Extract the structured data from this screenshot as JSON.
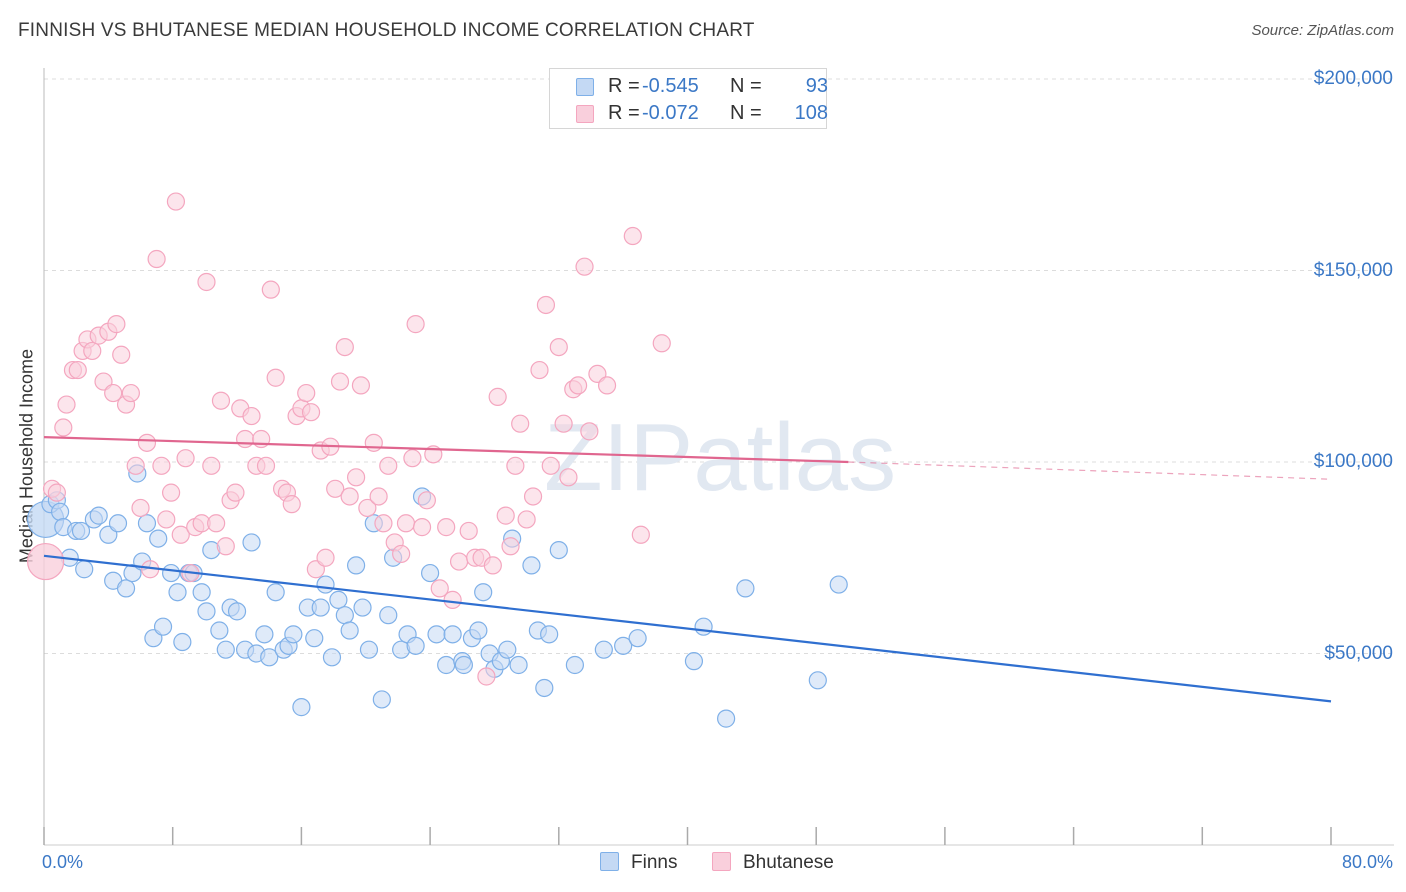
{
  "title": "FINNISH VS BHUTANESE MEDIAN HOUSEHOLD INCOME CORRELATION CHART",
  "source": "Source: ZipAtlas.com",
  "watermark": "ZIPatlas",
  "chart_data": {
    "type": "scatter",
    "title": "FINNISH VS BHUTANESE MEDIAN HOUSEHOLD INCOME CORRELATION CHART",
    "xlabel": "",
    "ylabel": "Median Household Income",
    "xlim": [
      0,
      80
    ],
    "ylim": [
      0,
      210000
    ],
    "x_tick_labels": [
      "0.0%",
      "80.0%"
    ],
    "y_ticks": [
      {
        "value": 50000,
        "label": "$50,000"
      },
      {
        "value": 100000,
        "label": "$100,000"
      },
      {
        "value": 150000,
        "label": "$150,000"
      },
      {
        "value": 200000,
        "label": "$200,000"
      }
    ],
    "grid": true,
    "legend": [
      {
        "r_label": "R =",
        "r_value": "-0.545",
        "n_label": "N =",
        "n_value": "93"
      },
      {
        "r_label": "R =",
        "r_value": "-0.072",
        "n_label": "N =",
        "n_value": "108"
      }
    ],
    "series": [
      {
        "name": "Finns",
        "color": "#7fb0e8",
        "fill": "#c4d9f4",
        "trend_color": "#2f6fd0",
        "trend": {
          "x0": 0,
          "y0": 75500,
          "x1": 80,
          "y1": 37500
        },
        "points": [
          [
            0.1,
            85000
          ],
          [
            0.4,
            89000
          ],
          [
            0.8,
            90000
          ],
          [
            1.0,
            87000
          ],
          [
            1.2,
            83000
          ],
          [
            1.6,
            75000
          ],
          [
            2.0,
            82000
          ],
          [
            2.3,
            82000
          ],
          [
            2.5,
            72000
          ],
          [
            3.1,
            85000
          ],
          [
            3.4,
            86000
          ],
          [
            4.0,
            81000
          ],
          [
            4.3,
            69000
          ],
          [
            4.6,
            84000
          ],
          [
            5.1,
            67000
          ],
          [
            5.5,
            71000
          ],
          [
            5.8,
            97000
          ],
          [
            6.1,
            74000
          ],
          [
            6.4,
            84000
          ],
          [
            6.8,
            54000
          ],
          [
            7.1,
            80000
          ],
          [
            7.4,
            57000
          ],
          [
            7.9,
            71000
          ],
          [
            8.3,
            66000
          ],
          [
            8.6,
            53000
          ],
          [
            9.0,
            71000
          ],
          [
            9.3,
            71000
          ],
          [
            9.8,
            66000
          ],
          [
            10.1,
            61000
          ],
          [
            10.4,
            77000
          ],
          [
            10.9,
            56000
          ],
          [
            11.3,
            51000
          ],
          [
            11.6,
            62000
          ],
          [
            12.0,
            61000
          ],
          [
            12.5,
            51000
          ],
          [
            12.9,
            79000
          ],
          [
            13.2,
            50000
          ],
          [
            13.7,
            55000
          ],
          [
            14.0,
            49000
          ],
          [
            14.4,
            66000
          ],
          [
            14.9,
            51000
          ],
          [
            15.2,
            52000
          ],
          [
            15.5,
            55000
          ],
          [
            16.0,
            36000
          ],
          [
            16.4,
            62000
          ],
          [
            16.8,
            54000
          ],
          [
            17.2,
            62000
          ],
          [
            17.5,
            68000
          ],
          [
            17.9,
            49000
          ],
          [
            18.3,
            64000
          ],
          [
            18.7,
            60000
          ],
          [
            19.0,
            56000
          ],
          [
            19.4,
            73000
          ],
          [
            19.8,
            62000
          ],
          [
            20.2,
            51000
          ],
          [
            20.5,
            84000
          ],
          [
            21.0,
            38000
          ],
          [
            21.4,
            60000
          ],
          [
            21.7,
            75000
          ],
          [
            22.2,
            51000
          ],
          [
            22.6,
            55000
          ],
          [
            23.1,
            52000
          ],
          [
            23.5,
            91000
          ],
          [
            24.0,
            71000
          ],
          [
            24.4,
            55000
          ],
          [
            25.0,
            47000
          ],
          [
            25.4,
            55000
          ],
          [
            26.0,
            48000
          ],
          [
            26.1,
            47000
          ],
          [
            26.6,
            54000
          ],
          [
            27.0,
            56000
          ],
          [
            27.3,
            66000
          ],
          [
            27.7,
            50000
          ],
          [
            28.0,
            46000
          ],
          [
            28.4,
            48000
          ],
          [
            28.8,
            51000
          ],
          [
            29.1,
            80000
          ],
          [
            29.5,
            47000
          ],
          [
            30.3,
            73000
          ],
          [
            30.7,
            56000
          ],
          [
            31.1,
            41000
          ],
          [
            31.4,
            55000
          ],
          [
            32.0,
            77000
          ],
          [
            33.0,
            47000
          ],
          [
            34.8,
            51000
          ],
          [
            36.0,
            52000
          ],
          [
            36.9,
            54000
          ],
          [
            40.4,
            48000
          ],
          [
            41.0,
            57000
          ],
          [
            42.4,
            33000
          ],
          [
            43.6,
            67000
          ],
          [
            48.1,
            43000
          ],
          [
            49.4,
            68000
          ]
        ],
        "big_points": [
          [
            0.1,
            85000
          ]
        ]
      },
      {
        "name": "Bhutanese",
        "color": "#f4a6bf",
        "fill": "#f9cfdc",
        "trend_color": "#e0668f",
        "trend": {
          "x0": 0,
          "y0": 106500,
          "x1": 50,
          "y1": 100000
        },
        "trend_ext": {
          "x0": 50,
          "y0": 100000,
          "x1": 80,
          "y1": 95500
        },
        "points": [
          [
            0.1,
            74000
          ],
          [
            0.5,
            93000
          ],
          [
            0.8,
            92000
          ],
          [
            1.2,
            109000
          ],
          [
            1.4,
            115000
          ],
          [
            1.8,
            124000
          ],
          [
            2.1,
            124000
          ],
          [
            2.4,
            129000
          ],
          [
            2.7,
            132000
          ],
          [
            3.0,
            129000
          ],
          [
            3.4,
            133000
          ],
          [
            3.7,
            121000
          ],
          [
            4.0,
            134000
          ],
          [
            4.3,
            118000
          ],
          [
            4.5,
            136000
          ],
          [
            4.8,
            128000
          ],
          [
            5.1,
            115000
          ],
          [
            5.4,
            118000
          ],
          [
            5.7,
            99000
          ],
          [
            6.0,
            88000
          ],
          [
            6.4,
            105000
          ],
          [
            6.6,
            72000
          ],
          [
            7.0,
            153000
          ],
          [
            7.3,
            99000
          ],
          [
            7.6,
            85000
          ],
          [
            7.9,
            92000
          ],
          [
            8.2,
            168000
          ],
          [
            8.5,
            81000
          ],
          [
            8.8,
            101000
          ],
          [
            9.1,
            71000
          ],
          [
            9.4,
            83000
          ],
          [
            9.8,
            84000
          ],
          [
            10.1,
            147000
          ],
          [
            10.4,
            99000
          ],
          [
            10.7,
            84000
          ],
          [
            11.0,
            116000
          ],
          [
            11.3,
            78000
          ],
          [
            11.6,
            90000
          ],
          [
            11.9,
            92000
          ],
          [
            12.2,
            114000
          ],
          [
            12.5,
            106000
          ],
          [
            12.9,
            112000
          ],
          [
            13.2,
            99000
          ],
          [
            13.5,
            106000
          ],
          [
            13.8,
            99000
          ],
          [
            14.1,
            145000
          ],
          [
            14.4,
            122000
          ],
          [
            14.8,
            93000
          ],
          [
            15.1,
            92000
          ],
          [
            15.4,
            89000
          ],
          [
            15.7,
            112000
          ],
          [
            16.0,
            114000
          ],
          [
            16.3,
            118000
          ],
          [
            16.6,
            113000
          ],
          [
            16.9,
            72000
          ],
          [
            17.2,
            103000
          ],
          [
            17.5,
            75000
          ],
          [
            17.8,
            104000
          ],
          [
            18.1,
            93000
          ],
          [
            18.4,
            121000
          ],
          [
            18.7,
            130000
          ],
          [
            19.0,
            91000
          ],
          [
            19.4,
            96000
          ],
          [
            19.7,
            120000
          ],
          [
            20.1,
            88000
          ],
          [
            20.5,
            105000
          ],
          [
            20.8,
            91000
          ],
          [
            21.1,
            84000
          ],
          [
            21.4,
            99000
          ],
          [
            21.8,
            79000
          ],
          [
            22.2,
            76000
          ],
          [
            22.5,
            84000
          ],
          [
            22.9,
            101000
          ],
          [
            23.1,
            136000
          ],
          [
            23.5,
            83000
          ],
          [
            23.8,
            90000
          ],
          [
            24.2,
            102000
          ],
          [
            24.6,
            67000
          ],
          [
            25.0,
            83000
          ],
          [
            25.4,
            64000
          ],
          [
            25.8,
            74000
          ],
          [
            26.4,
            82000
          ],
          [
            26.8,
            75000
          ],
          [
            27.2,
            75000
          ],
          [
            27.5,
            44000
          ],
          [
            27.9,
            73000
          ],
          [
            28.2,
            117000
          ],
          [
            28.7,
            86000
          ],
          [
            29.0,
            78000
          ],
          [
            29.3,
            99000
          ],
          [
            29.6,
            110000
          ],
          [
            30.0,
            85000
          ],
          [
            30.4,
            91000
          ],
          [
            30.8,
            124000
          ],
          [
            31.2,
            141000
          ],
          [
            31.5,
            99000
          ],
          [
            32.0,
            130000
          ],
          [
            32.3,
            110000
          ],
          [
            32.6,
            96000
          ],
          [
            32.9,
            119000
          ],
          [
            33.2,
            120000
          ],
          [
            33.6,
            151000
          ],
          [
            33.9,
            108000
          ],
          [
            34.4,
            123000
          ],
          [
            35.0,
            120000
          ],
          [
            36.6,
            159000
          ],
          [
            37.1,
            81000
          ],
          [
            38.4,
            131000
          ]
        ],
        "big_points": [
          [
            0.1,
            74000
          ]
        ]
      }
    ]
  }
}
